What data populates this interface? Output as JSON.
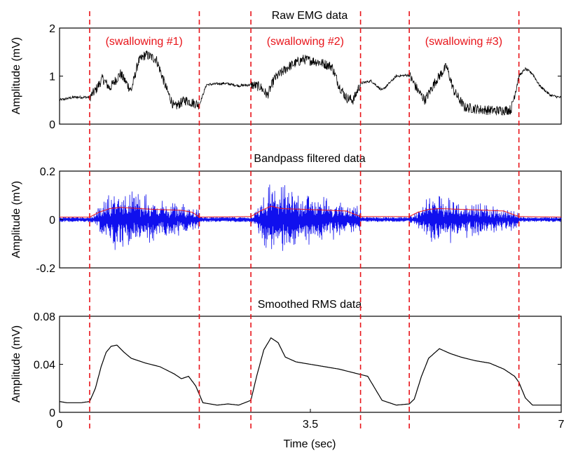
{
  "chart_data": {
    "type": "line",
    "xlabel": "Time (sec)",
    "xlim": [
      0,
      7
    ],
    "xticks": [
      "0",
      "3.5",
      "7"
    ],
    "event_markers": {
      "color": "#e8141a",
      "style": "dashed",
      "x": [
        0.42,
        1.95,
        2.67,
        4.2,
        4.88,
        6.41
      ]
    },
    "swallow_labels": [
      {
        "text": "(swallowing #1)",
        "x": 1.18
      },
      {
        "text": "(swallowing #2)",
        "x": 3.43
      },
      {
        "text": "(swallowing #3)",
        "x": 5.64
      }
    ],
    "panels": [
      {
        "id": "raw",
        "title": "Raw EMG data",
        "ylabel": "Amplitude (mV)",
        "ylim": [
          0,
          2
        ],
        "yticks": [
          "0",
          "1",
          "2"
        ],
        "series": [
          {
            "color": "#000000",
            "noise": 0.08,
            "x": [
              0,
              0.2,
              0.42,
              0.5,
              0.6,
              0.7,
              0.85,
              1.0,
              1.1,
              1.2,
              1.35,
              1.5,
              1.6,
              1.75,
              1.95,
              2.05,
              2.3,
              2.5,
              2.67,
              2.8,
              2.9,
              3.0,
              3.2,
              3.4,
              3.6,
              3.8,
              3.9,
              4.0,
              4.1,
              4.2,
              4.35,
              4.5,
              4.7,
              4.88,
              5.0,
              5.1,
              5.25,
              5.4,
              5.5,
              5.65,
              5.9,
              6.1,
              6.3,
              6.41,
              6.5,
              6.6,
              6.7,
              6.85,
              7.0
            ],
            "y": [
              0.5,
              0.56,
              0.56,
              0.7,
              0.95,
              0.75,
              1.05,
              0.7,
              1.3,
              1.45,
              1.35,
              0.7,
              0.35,
              0.5,
              0.4,
              0.82,
              0.85,
              0.8,
              0.82,
              0.78,
              0.6,
              0.95,
              1.2,
              1.35,
              1.3,
              1.2,
              0.8,
              0.55,
              0.5,
              0.85,
              0.9,
              0.7,
              1.0,
              1.02,
              0.7,
              0.5,
              0.9,
              1.2,
              0.7,
              0.35,
              0.3,
              0.28,
              0.3,
              1.0,
              1.15,
              1.05,
              0.8,
              0.6,
              0.55
            ]
          }
        ]
      },
      {
        "id": "bandpass",
        "title": "Bandpass filtered data",
        "ylabel": "Amplitude (mV)",
        "ylim": [
          -0.2,
          0.2
        ],
        "yticks": [
          "-0.2",
          "0",
          "0.2"
        ],
        "series": [
          {
            "name": "filtered",
            "color": "#1010ee",
            "baseline_amplitude": 0.01,
            "bursts": [
              {
                "start": 0.42,
                "peak": 0.75,
                "end": 1.95,
                "amplitude": 0.15
              },
              {
                "start": 2.67,
                "peak": 2.95,
                "end": 4.2,
                "amplitude": 0.17
              },
              {
                "start": 4.88,
                "peak": 5.2,
                "end": 6.41,
                "amplitude": 0.12
              }
            ]
          },
          {
            "name": "envelope",
            "color": "#e8141a",
            "x": [
              0,
              0.42,
              0.55,
              0.7,
              0.85,
              1.3,
              1.7,
              1.85,
              1.95,
              2.67,
              2.8,
              2.95,
              3.1,
              3.6,
              4.0,
              4.2,
              4.88,
              5.0,
              5.15,
              5.3,
              5.8,
              6.2,
              6.41,
              7.0
            ],
            "y": [
              0.01,
              0.01,
              0.03,
              0.045,
              0.05,
              0.042,
              0.038,
              0.03,
              0.01,
              0.012,
              0.035,
              0.055,
              0.045,
              0.04,
              0.035,
              0.012,
              0.012,
              0.03,
              0.042,
              0.045,
              0.04,
              0.035,
              0.012,
              0.01
            ]
          }
        ]
      },
      {
        "id": "rms",
        "title": "Smoothed RMS data",
        "ylabel": "Amplitude (mV)",
        "ylim": [
          0,
          0.08
        ],
        "yticks": [
          "0",
          "0.04",
          "0.08"
        ],
        "series": [
          {
            "color": "#000000",
            "x": [
              0,
              0.1,
              0.3,
              0.42,
              0.5,
              0.58,
              0.65,
              0.72,
              0.8,
              0.9,
              1.0,
              1.2,
              1.4,
              1.6,
              1.7,
              1.8,
              1.9,
              2.0,
              2.2,
              2.35,
              2.5,
              2.67,
              2.75,
              2.85,
              2.95,
              3.05,
              3.15,
              3.3,
              3.6,
              3.9,
              4.1,
              4.3,
              4.5,
              4.7,
              4.88,
              4.95,
              5.05,
              5.15,
              5.3,
              5.45,
              5.6,
              5.8,
              6.0,
              6.2,
              6.35,
              6.41,
              6.5,
              6.6,
              6.75,
              7.0
            ],
            "y": [
              0.009,
              0.008,
              0.008,
              0.009,
              0.02,
              0.038,
              0.05,
              0.055,
              0.056,
              0.05,
              0.045,
              0.041,
              0.038,
              0.032,
              0.028,
              0.03,
              0.022,
              0.008,
              0.006,
              0.007,
              0.006,
              0.01,
              0.03,
              0.052,
              0.062,
              0.058,
              0.046,
              0.042,
              0.039,
              0.036,
              0.033,
              0.03,
              0.01,
              0.006,
              0.007,
              0.011,
              0.03,
              0.045,
              0.053,
              0.049,
              0.046,
              0.043,
              0.041,
              0.036,
              0.03,
              0.025,
              0.012,
              0.006,
              0.006,
              0.006
            ]
          }
        ]
      }
    ]
  }
}
